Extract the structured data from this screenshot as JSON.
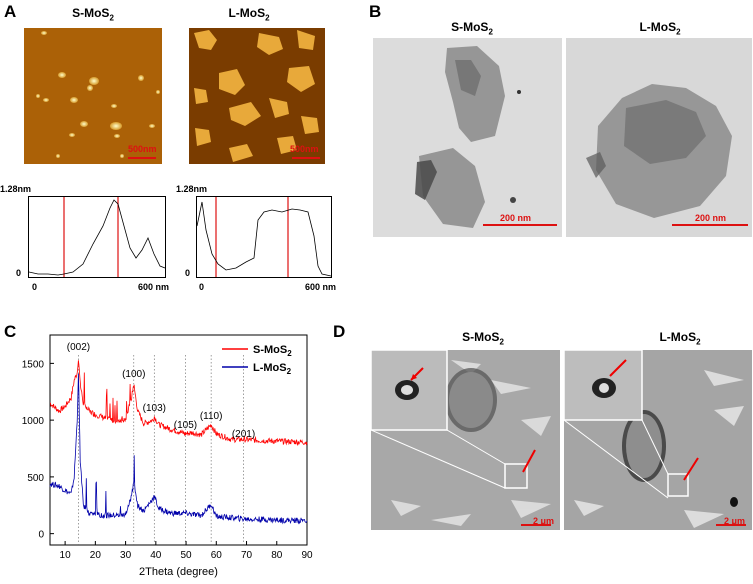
{
  "panelA": {
    "letter": "A",
    "left_title": "S-MoS",
    "right_title": "L-MoS",
    "sub": "2",
    "left_scale": "500nm",
    "right_scale": "500nm",
    "profile_top": "1.28nm",
    "profile_zero": "0",
    "profile_x0": "0",
    "profile_x1": "600 nm"
  },
  "panelB": {
    "letter": "B",
    "left_title": "S-MoS",
    "right_title": "L-MoS",
    "sub": "2",
    "left_scale": "200 nm",
    "right_scale": "200 nm"
  },
  "panelC": {
    "letter": "C",
    "peaks": [
      "(002)",
      "(100)",
      "(103)",
      "(105)",
      "(110)",
      "(201)"
    ],
    "legend": [
      {
        "name": "S-MoS",
        "sub": "2",
        "color": "#ff0000"
      },
      {
        "name": "L-MoS",
        "sub": "2",
        "color": "#0000aa"
      }
    ]
  },
  "chart_data": {
    "type": "line",
    "xlabel": "2Theta (degree)",
    "ylabel": "",
    "xlim": [
      5,
      90
    ],
    "ylim": [
      -100,
      1750
    ],
    "xticks": [
      "10",
      "20",
      "30",
      "40",
      "50",
      "60",
      "70",
      "80",
      "90"
    ],
    "yticks": [
      "0",
      "500",
      "1000",
      "1500"
    ],
    "peak_positions": [
      14.4,
      32.7,
      39.5,
      49.8,
      58.3,
      69.0
    ],
    "series": [
      {
        "name": "S-MoS2",
        "color": "#ff0000",
        "x": [
          5,
          8,
          10,
          12,
          13,
          14,
          14.4,
          15,
          16,
          18,
          20,
          25,
          30,
          32,
          32.7,
          34,
          36,
          39,
          39.5,
          41,
          45,
          49.8,
          52,
          55,
          58.3,
          60,
          65,
          69,
          75,
          80,
          90
        ],
        "y": [
          1150,
          1080,
          1120,
          1200,
          1350,
          1420,
          1550,
          1320,
          1150,
          1080,
          1050,
          1000,
          1000,
          1200,
          1320,
          1080,
          970,
          1000,
          1030,
          960,
          920,
          880,
          890,
          870,
          960,
          880,
          830,
          830,
          820,
          815,
          805
        ]
      },
      {
        "name": "L-MoS2",
        "color": "#0000aa",
        "x": [
          5,
          8,
          10,
          12,
          13,
          14,
          14.4,
          15,
          16,
          18,
          20,
          25,
          30,
          32,
          32.7,
          34,
          36,
          39,
          39.5,
          41,
          45,
          49.8,
          52,
          55,
          58.3,
          60,
          65,
          69,
          75,
          80,
          90
        ],
        "y": [
          440,
          420,
          380,
          350,
          500,
          1000,
          1420,
          650,
          250,
          180,
          170,
          160,
          160,
          330,
          470,
          250,
          200,
          310,
          330,
          220,
          180,
          180,
          170,
          160,
          260,
          150,
          140,
          130,
          125,
          120,
          115
        ]
      }
    ]
  },
  "panelD": {
    "letter": "D",
    "left_title": "S-MoS",
    "right_title": "L-MoS",
    "sub": "2",
    "left_scale": "2 μm",
    "right_scale": "2 μm"
  }
}
